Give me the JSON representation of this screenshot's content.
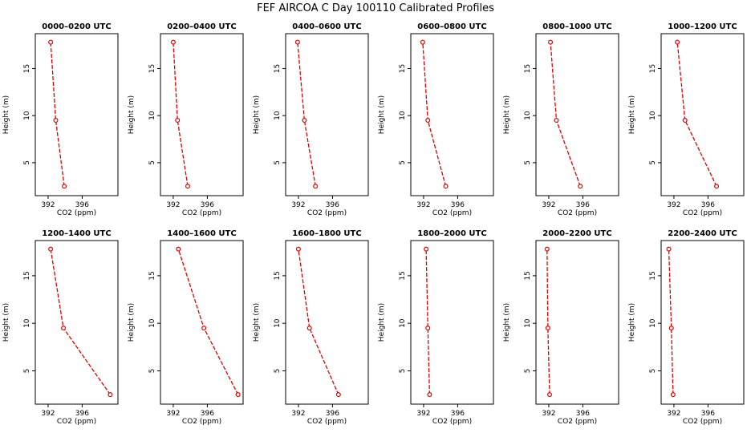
{
  "figure": {
    "title": "FEF AIRCOA C  Day 100110  Calibrated Profiles"
  },
  "colors": {
    "series": "#e00000",
    "axis": "#000000",
    "background": "#ffffff"
  },
  "chart_data": [
    {
      "type": "line",
      "title": "0000–0200 UTC",
      "xlabel": "CO2 (ppm)",
      "ylabel": "Height (m)",
      "xticks": [
        392,
        396
      ],
      "yticks": [
        5,
        10,
        15
      ],
      "xlim": [
        390.5,
        400.2
      ],
      "ylim": [
        1.5,
        18.7
      ],
      "grid": false,
      "points": [
        {
          "x": 393.9,
          "y": 2.5
        },
        {
          "x": 392.9,
          "y": 9.5
        },
        {
          "x": 392.3,
          "y": 17.8
        }
      ]
    },
    {
      "type": "line",
      "title": "0200–0400 UTC",
      "xlabel": "CO2 (ppm)",
      "ylabel": "Height (m)",
      "xticks": [
        392,
        396
      ],
      "yticks": [
        5,
        10,
        15
      ],
      "xlim": [
        390.5,
        400.2
      ],
      "ylim": [
        1.5,
        18.7
      ],
      "grid": false,
      "points": [
        {
          "x": 393.7,
          "y": 2.5
        },
        {
          "x": 392.5,
          "y": 9.5
        },
        {
          "x": 392.0,
          "y": 17.8
        }
      ]
    },
    {
      "type": "line",
      "title": "0400–0600 UTC",
      "xlabel": "CO2 (ppm)",
      "ylabel": "Height (m)",
      "xticks": [
        392,
        396
      ],
      "yticks": [
        5,
        10,
        15
      ],
      "xlim": [
        390.5,
        400.2
      ],
      "ylim": [
        1.5,
        18.7
      ],
      "grid": false,
      "points": [
        {
          "x": 394.0,
          "y": 2.5
        },
        {
          "x": 392.7,
          "y": 9.5
        },
        {
          "x": 391.9,
          "y": 17.8
        }
      ]
    },
    {
      "type": "line",
      "title": "0600–0800 UTC",
      "xlabel": "CO2 (ppm)",
      "ylabel": "Height (m)",
      "xticks": [
        392,
        396
      ],
      "yticks": [
        5,
        10,
        15
      ],
      "xlim": [
        390.5,
        400.2
      ],
      "ylim": [
        1.5,
        18.7
      ],
      "grid": false,
      "points": [
        {
          "x": 394.6,
          "y": 2.5
        },
        {
          "x": 392.5,
          "y": 9.5
        },
        {
          "x": 391.9,
          "y": 17.8
        }
      ]
    },
    {
      "type": "line",
      "title": "0800–1000 UTC",
      "xlabel": "CO2 (ppm)",
      "ylabel": "Height (m)",
      "xticks": [
        392,
        396
      ],
      "yticks": [
        5,
        10,
        15
      ],
      "xlim": [
        390.5,
        400.2
      ],
      "ylim": [
        1.5,
        18.7
      ],
      "grid": false,
      "points": [
        {
          "x": 395.7,
          "y": 2.5
        },
        {
          "x": 392.9,
          "y": 9.5
        },
        {
          "x": 392.2,
          "y": 17.8
        }
      ]
    },
    {
      "type": "line",
      "title": "1000–1200 UTC",
      "xlabel": "CO2 (ppm)",
      "ylabel": "Height (m)",
      "xticks": [
        392,
        396
      ],
      "yticks": [
        5,
        10,
        15
      ],
      "xlim": [
        390.5,
        400.2
      ],
      "ylim": [
        1.5,
        18.7
      ],
      "grid": false,
      "points": [
        {
          "x": 397.0,
          "y": 2.5
        },
        {
          "x": 393.3,
          "y": 9.5
        },
        {
          "x": 392.4,
          "y": 17.8
        }
      ]
    },
    {
      "type": "line",
      "title": "1200–1400 UTC",
      "xlabel": "CO2 (ppm)",
      "ylabel": "Height (m)",
      "xticks": [
        392,
        396
      ],
      "yticks": [
        5,
        10,
        15
      ],
      "xlim": [
        390.5,
        400.2
      ],
      "ylim": [
        1.5,
        18.7
      ],
      "grid": false,
      "points": [
        {
          "x": 399.3,
          "y": 2.5
        },
        {
          "x": 393.8,
          "y": 9.5
        },
        {
          "x": 392.3,
          "y": 17.8
        }
      ]
    },
    {
      "type": "line",
      "title": "1400–1600 UTC",
      "xlabel": "CO2 (ppm)",
      "ylabel": "Height (m)",
      "xticks": [
        392,
        396
      ],
      "yticks": [
        5,
        10,
        15
      ],
      "xlim": [
        390.5,
        400.2
      ],
      "ylim": [
        1.5,
        18.7
      ],
      "grid": false,
      "points": [
        {
          "x": 399.6,
          "y": 2.5
        },
        {
          "x": 395.6,
          "y": 9.5
        },
        {
          "x": 392.6,
          "y": 17.8
        }
      ]
    },
    {
      "type": "line",
      "title": "1600–1800 UTC",
      "xlabel": "CO2 (ppm)",
      "ylabel": "Height (m)",
      "xticks": [
        392,
        396
      ],
      "yticks": [
        5,
        10,
        15
      ],
      "xlim": [
        390.5,
        400.2
      ],
      "ylim": [
        1.5,
        18.7
      ],
      "grid": false,
      "points": [
        {
          "x": 396.7,
          "y": 2.5
        },
        {
          "x": 393.3,
          "y": 9.5
        },
        {
          "x": 392.0,
          "y": 17.8
        }
      ]
    },
    {
      "type": "line",
      "title": "1800–2000 UTC",
      "xlabel": "CO2 (ppm)",
      "ylabel": "Height (m)",
      "xticks": [
        392,
        396
      ],
      "yticks": [
        5,
        10,
        15
      ],
      "xlim": [
        390.5,
        400.2
      ],
      "ylim": [
        1.5,
        18.7
      ],
      "grid": false,
      "points": [
        {
          "x": 392.7,
          "y": 2.5
        },
        {
          "x": 392.5,
          "y": 9.5
        },
        {
          "x": 392.3,
          "y": 17.8
        }
      ]
    },
    {
      "type": "line",
      "title": "2000–2200 UTC",
      "xlabel": "CO2 (ppm)",
      "ylabel": "Height (m)",
      "xticks": [
        392,
        396
      ],
      "yticks": [
        5,
        10,
        15
      ],
      "xlim": [
        390.5,
        400.2
      ],
      "ylim": [
        1.5,
        18.7
      ],
      "grid": false,
      "points": [
        {
          "x": 392.1,
          "y": 2.5
        },
        {
          "x": 391.9,
          "y": 9.5
        },
        {
          "x": 391.8,
          "y": 17.8
        }
      ]
    },
    {
      "type": "line",
      "title": "2200–2400 UTC",
      "xlabel": "CO2 (ppm)",
      "ylabel": "Height (m)",
      "xticks": [
        392,
        396
      ],
      "yticks": [
        5,
        10,
        15
      ],
      "xlim": [
        390.5,
        400.2
      ],
      "ylim": [
        1.5,
        18.7
      ],
      "grid": false,
      "points": [
        {
          "x": 391.9,
          "y": 2.5
        },
        {
          "x": 391.7,
          "y": 9.5
        },
        {
          "x": 391.4,
          "y": 17.8
        }
      ]
    }
  ]
}
